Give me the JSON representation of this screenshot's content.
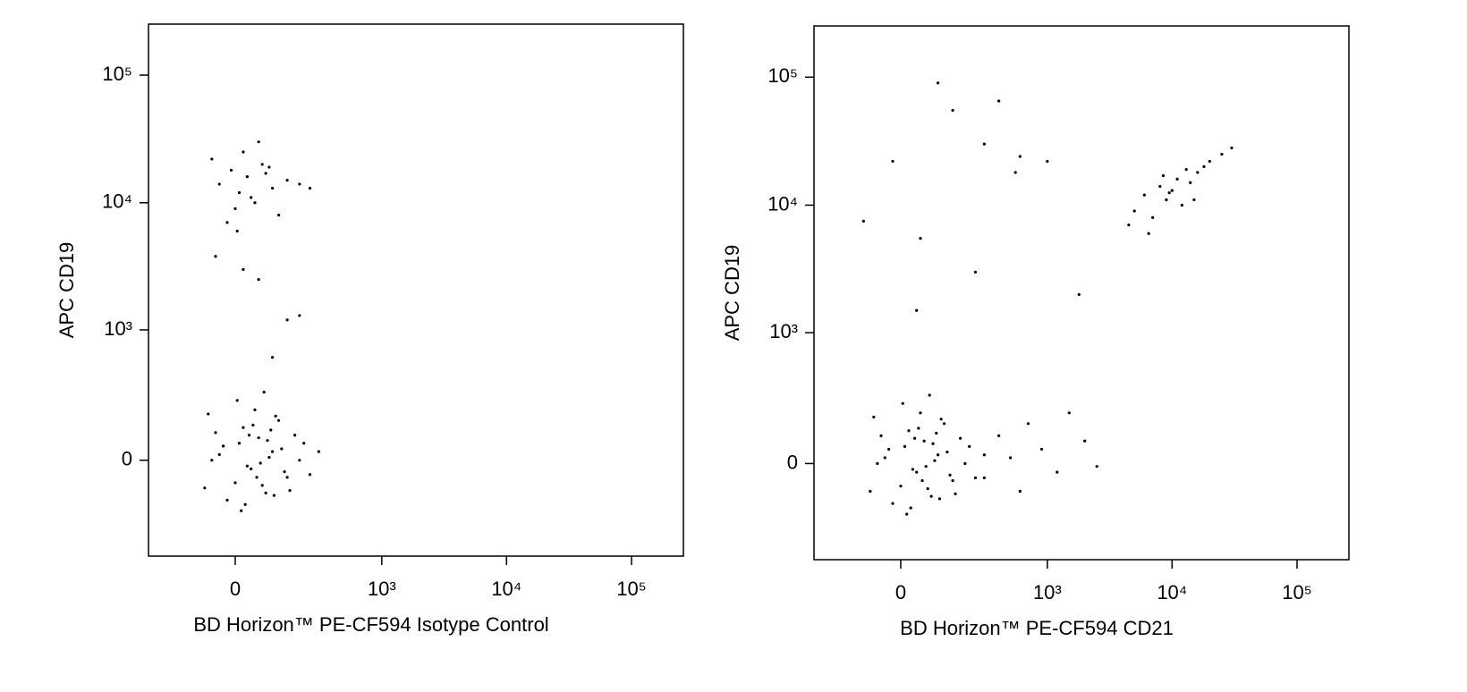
{
  "chart_data": [
    {
      "type": "scatter",
      "color": "#000000",
      "scale": "biexponential",
      "xlabel": "BD Horizon™ PE-CF594 Isotype Control",
      "ylabel": "APC CD19",
      "xlim": [
        -320,
        260000
      ],
      "ylim": [
        -524,
        251000
      ],
      "xticks": [
        0,
        {
          "value": 1000,
          "label": "10³"
        },
        {
          "value": 10000,
          "label": "10⁴"
        },
        {
          "value": 100000,
          "label": "10⁵"
        }
      ],
      "yticks": [
        0,
        {
          "value": 1000,
          "label": "10³"
        },
        {
          "value": 10000,
          "label": "10⁴"
        },
        {
          "value": 100000,
          "label": "10⁵"
        }
      ],
      "x": [
        -60,
        -30,
        0,
        20,
        40,
        60,
        80,
        100,
        120,
        150,
        -50,
        -20,
        10,
        30,
        50,
        70,
        90,
        110,
        140,
        180,
        -80,
        -40,
        5,
        25,
        45,
        65,
        85,
        105,
        130,
        200,
        250,
        300,
        -70,
        15,
        35,
        55,
        75,
        95,
        160,
        220,
        -40,
        -10,
        10,
        30,
        50,
        70,
        100,
        150,
        -60,
        0,
        20,
        40,
        80,
        120,
        200,
        -20,
        60,
        250,
        5,
        90,
        20,
        60,
        150,
        200,
        100,
        -50
      ],
      "y": [
        0,
        50,
        -80,
        120,
        -30,
        80,
        -120,
        30,
        150,
        -60,
        100,
        -150,
        60,
        -20,
        200,
        -90,
        10,
        170,
        -40,
        90,
        -100,
        20,
        250,
        -170,
        130,
        -10,
        70,
        -130,
        40,
        0,
        -50,
        30,
        180,
        -200,
        90,
        -60,
        300,
        110,
        -110,
        60,
        14000,
        18000,
        12000,
        16000,
        10000,
        20000,
        13000,
        15000,
        22000,
        9000,
        25000,
        11000,
        17000,
        8000,
        14000,
        7000,
        30000,
        13000,
        6000,
        19000,
        3000,
        2500,
        1200,
        1300,
        600,
        3800
      ]
    },
    {
      "type": "scatter",
      "color": "#000000",
      "scale": "biexponential",
      "xlabel": "BD Horizon™ PE-CF594 CD21",
      "ylabel": "APC CD19",
      "xlim": [
        -320,
        260000
      ],
      "ylim": [
        -524,
        251000
      ],
      "xticks": [
        0,
        {
          "value": 1000,
          "label": "10³"
        },
        {
          "value": 10000,
          "label": "10⁴"
        },
        {
          "value": 100000,
          "label": "10⁵"
        }
      ],
      "yticks": [
        0,
        {
          "value": 1000,
          "label": "10³"
        },
        {
          "value": 10000,
          "label": "10⁴"
        },
        {
          "value": 100000,
          "label": "10⁵"
        }
      ],
      "x": [
        -60,
        -30,
        0,
        20,
        40,
        60,
        80,
        100,
        120,
        150,
        -50,
        -20,
        10,
        30,
        50,
        70,
        90,
        110,
        140,
        180,
        -80,
        -40,
        5,
        25,
        45,
        65,
        85,
        105,
        130,
        200,
        250,
        300,
        -70,
        15,
        35,
        55,
        75,
        95,
        160,
        220,
        300,
        400,
        500,
        600,
        700,
        900,
        1200,
        1500,
        2000,
        2500,
        5000,
        6000,
        7000,
        8000,
        9000,
        10000,
        11000,
        12000,
        14000,
        16000,
        18000,
        20000,
        6500,
        8500,
        9500,
        13000,
        15000,
        25000,
        30000,
        4500,
        100,
        150,
        400,
        300,
        -20,
        -100,
        50,
        250,
        600,
        1000,
        1800,
        550,
        40
      ],
      "y": [
        0,
        50,
        -80,
        120,
        -30,
        80,
        -120,
        30,
        150,
        -60,
        100,
        -150,
        60,
        -20,
        200,
        -90,
        10,
        170,
        -40,
        90,
        -100,
        20,
        250,
        -170,
        130,
        -10,
        70,
        -130,
        40,
        0,
        -50,
        30,
        180,
        -200,
        90,
        -60,
        300,
        110,
        -110,
        60,
        -50,
        100,
        20,
        -100,
        150,
        50,
        -30,
        200,
        80,
        -10,
        9000,
        12000,
        8000,
        14000,
        11000,
        13000,
        16000,
        10000,
        15000,
        18000,
        20000,
        22000,
        6000,
        17000,
        12500,
        19000,
        11000,
        25000,
        28000,
        7000,
        90000,
        55000,
        65000,
        30000,
        22000,
        7500,
        5500,
        3000,
        24000,
        22000,
        2000,
        18000,
        1500
      ]
    }
  ]
}
